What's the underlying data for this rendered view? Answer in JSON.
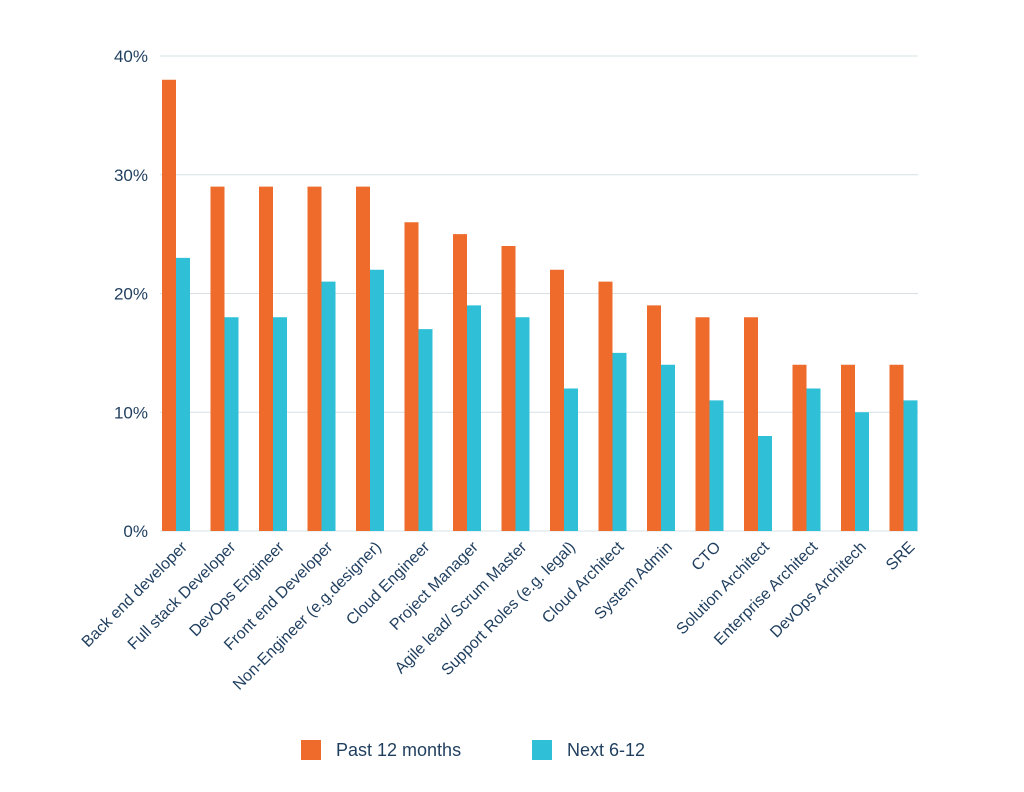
{
  "colors": {
    "past": "#EE6B2B",
    "next": "#2FBFD6",
    "gridline": "#D7E1E5",
    "axis_text": "#1F3E5E"
  },
  "chart_data": {
    "type": "bar",
    "categories": [
      "Back end developer",
      "Full stack Developer",
      "DevOps Engineer",
      "Front end Developer",
      "Non-Engineer (e.g.designer)",
      "Cloud Engineer",
      "Project Manager",
      "Agile lead/ Scrum Master",
      "Support Roles (e.g. legal)",
      "Cloud Architect",
      "System Admin",
      "CTO",
      "Solution Architect",
      "Enterprise Architect",
      "DevOps Architech",
      "SRE"
    ],
    "series": [
      {
        "name": "Past 12 months",
        "color": "#EE6B2B",
        "values": [
          38,
          29,
          29,
          29,
          29,
          26,
          25,
          24,
          22,
          21,
          19,
          18,
          18,
          14,
          14,
          14
        ]
      },
      {
        "name": "Next 6-12",
        "color": "#2FBFD6",
        "values": [
          23,
          18,
          18,
          21,
          22,
          17,
          19,
          18,
          12,
          15,
          14,
          11,
          8,
          12,
          10,
          11
        ]
      }
    ],
    "yticks": [
      "0%",
      "10%",
      "20%",
      "30%",
      "40%"
    ],
    "ylim": [
      0,
      40
    ],
    "grid": true,
    "legend_position": "bottom-center"
  }
}
